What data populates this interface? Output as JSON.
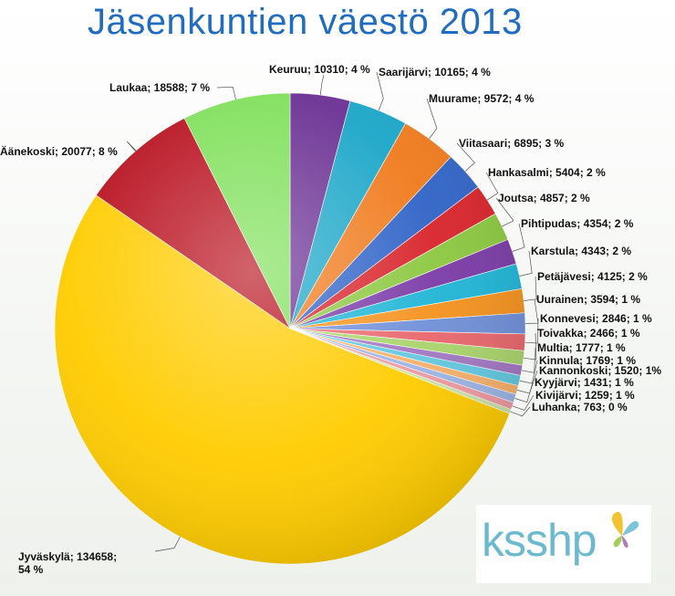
{
  "chart_data": {
    "type": "pie",
    "title": "Jäsenkuntien väestö 2013",
    "slices": [
      {
        "name": "Keuruu",
        "value": 10310,
        "pct": "4 %",
        "label": "Keuruu; 10310; 4 %",
        "color": "#6a2f93"
      },
      {
        "name": "Saarijärvi",
        "value": 10165,
        "pct": "4 %",
        "label": "Saarijärvi; 10165; 4 %",
        "color": "#1aa6c8"
      },
      {
        "name": "Muurame",
        "value": 9572,
        "pct": "4 %",
        "label": "Muurame; 9572; 4 %",
        "color": "#f07a1c"
      },
      {
        "name": "Viitasaari",
        "value": 6895,
        "pct": "3 %",
        "label": "Viitasaari; 6895; 3 %",
        "color": "#2f63c7"
      },
      {
        "name": "Hankasalmi",
        "value": 5404,
        "pct": "2 %",
        "label": "Hankasalmi; 5404; 2 %",
        "color": "#d8232a"
      },
      {
        "name": "Joutsa",
        "value": 4857,
        "pct": "2 %",
        "label": "Joutsa; 4857; 2 %",
        "color": "#8bc83f"
      },
      {
        "name": "Pihtipudas",
        "value": 4354,
        "pct": "2 %",
        "label": "Pihtipudas; 4354; 2 %",
        "color": "#7a3aa6"
      },
      {
        "name": "Karstula",
        "value": 4343,
        "pct": "2 %",
        "label": "Karstula; 4343; 2 %",
        "color": "#1fb5d6"
      },
      {
        "name": "Petäjävesi",
        "value": 4125,
        "pct": "2 %",
        "label": "Petäjävesi; 4125; 2 %",
        "color": "#f5921e"
      },
      {
        "name": "Uurainen",
        "value": 3594,
        "pct": "1 %",
        "label": "Uurainen; 3594; 1 %",
        "color": "#6f8fd8"
      },
      {
        "name": "Konnevesi",
        "value": 2846,
        "pct": "1 %",
        "label": "Konnevesi; 2846; 1 %",
        "color": "#e8676c"
      },
      {
        "name": "Toivakka",
        "value": 2466,
        "pct": "1 %",
        "label": "Toivakka; 2466; 1 %",
        "color": "#a9d46b"
      },
      {
        "name": "Multia",
        "value": 1777,
        "pct": "1 %",
        "label": "Multia; 1777; 1 %",
        "color": "#a277c2"
      },
      {
        "name": "Kinnula",
        "value": 1769,
        "pct": "1 %",
        "label": "Kinnula; 1769; 1 %",
        "color": "#62c8e0"
      },
      {
        "name": "Kannonkoski",
        "value": 1520,
        "pct": "1%",
        "label": "Kannonkoski; 1520; 1%",
        "color": "#f7b06a"
      },
      {
        "name": "Kyyjärvi",
        "value": 1431,
        "pct": "1 %",
        "label": "Kyyjärvi; 1431; 1 %",
        "color": "#9cb5e6"
      },
      {
        "name": "Kivijärvi",
        "value": 1259,
        "pct": "1 %",
        "label": "Kivijärvi; 1259; 1 %",
        "color": "#ee9aa0"
      },
      {
        "name": "Luhanka",
        "value": 763,
        "pct": "0 %",
        "label": "Luhanka; 763; 0 %",
        "color": "#c9e2a6"
      },
      {
        "name": "Jyväskylä",
        "value": 134658,
        "pct": "54 %",
        "label": "Jyväskylä; 134658;\n54 %",
        "color": "#ffcc00"
      },
      {
        "name": "Äänekoski",
        "value": 20077,
        "pct": "8 %",
        "label": "Äänekoski; 20077; 8 %",
        "color": "#b8101e"
      },
      {
        "name": "Laukaa",
        "value": 18588,
        "pct": "7 %",
        "label": "Laukaa; 18588; 7 %",
        "color": "#7fe05a"
      }
    ],
    "start_angle_deg": 0,
    "direction": "clockwise",
    "legend": "none"
  },
  "logo": {
    "text": "ksshp"
  }
}
